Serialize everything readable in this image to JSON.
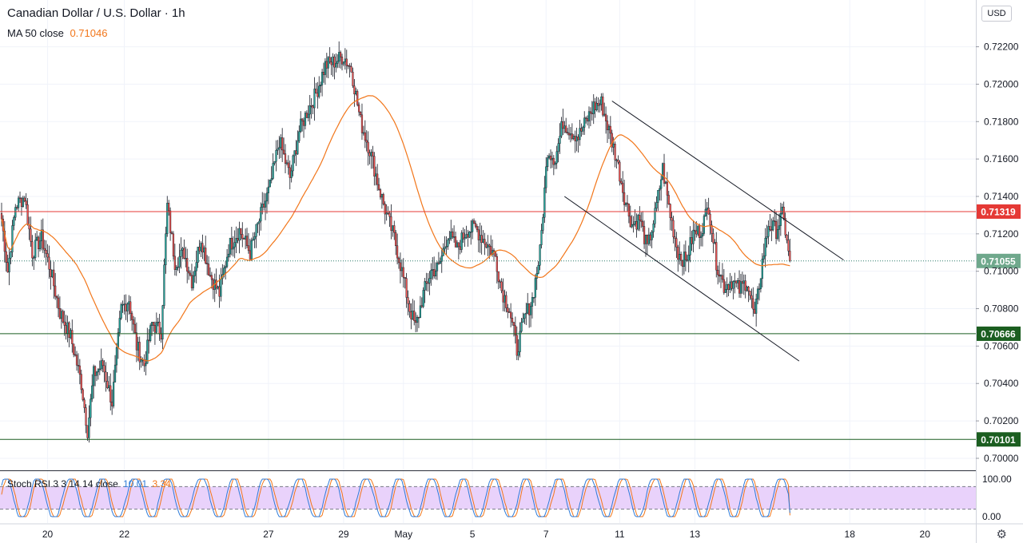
{
  "header": {
    "title": "Canadian Dollar / U.S. Dollar · 1h",
    "ma_label": "MA 50 close",
    "ma_value": "0.71046",
    "currency": "USD"
  },
  "rsi_legend": {
    "label": "Stoch RSI 3 3 14 14 close",
    "k_value": "10.01",
    "d_value": "3.34"
  },
  "colors": {
    "up": "#26a69a",
    "down": "#ef5350",
    "wick": "#131722",
    "ma": "#f2761a",
    "resistance": "#e53935",
    "support": "#1b5e20",
    "last": "#6fa88c",
    "stoch_k": "#2f7bd8",
    "stoch_d": "#f2761a",
    "stoch_band": "#e9d2fb"
  },
  "icons": {
    "settings": "gear-icon"
  },
  "chart_data": {
    "type": "candlestick",
    "symbol": "CADUSD",
    "interval": "1h",
    "y_axis_ticks": [
      "0.72200",
      "0.72000",
      "0.71800",
      "0.71600",
      "0.71400",
      "0.71200",
      "0.71000",
      "0.70800",
      "0.70600",
      "0.70400",
      "0.70200",
      "0.70000"
    ],
    "ylim": [
      0.6994,
      0.7245
    ],
    "x_axis_ticks": [
      "20",
      "22",
      "27",
      "29",
      "May",
      "5",
      "7",
      "11",
      "13",
      "18",
      "20"
    ],
    "x_tick_bars": [
      30,
      80,
      174,
      223,
      262,
      307,
      355,
      403,
      452,
      553,
      602
    ],
    "total_bars": 640,
    "anchors": [
      [
        0,
        0.7128
      ],
      [
        4,
        0.71
      ],
      [
        9,
        0.7135
      ],
      [
        15,
        0.714
      ],
      [
        20,
        0.711
      ],
      [
        26,
        0.7118
      ],
      [
        32,
        0.71
      ],
      [
        38,
        0.7078
      ],
      [
        45,
        0.7065
      ],
      [
        52,
        0.704
      ],
      [
        56,
        0.7015
      ],
      [
        60,
        0.7045
      ],
      [
        66,
        0.705
      ],
      [
        72,
        0.703
      ],
      [
        78,
        0.708
      ],
      [
        83,
        0.7085
      ],
      [
        88,
        0.706
      ],
      [
        93,
        0.705
      ],
      [
        98,
        0.7072
      ],
      [
        104,
        0.7068
      ],
      [
        108,
        0.7135
      ],
      [
        113,
        0.7105
      ],
      [
        119,
        0.711
      ],
      [
        124,
        0.7095
      ],
      [
        130,
        0.7118
      ],
      [
        136,
        0.7098
      ],
      [
        142,
        0.7088
      ],
      [
        148,
        0.7113
      ],
      [
        155,
        0.7122
      ],
      [
        162,
        0.711
      ],
      [
        169,
        0.713
      ],
      [
        175,
        0.7145
      ],
      [
        181,
        0.717
      ],
      [
        188,
        0.715
      ],
      [
        194,
        0.7175
      ],
      [
        199,
        0.7185
      ],
      [
        205,
        0.7195
      ],
      [
        211,
        0.721
      ],
      [
        217,
        0.7212
      ],
      [
        223,
        0.7215
      ],
      [
        228,
        0.7208
      ],
      [
        234,
        0.718
      ],
      [
        240,
        0.7165
      ],
      [
        246,
        0.7145
      ],
      [
        251,
        0.713
      ],
      [
        256,
        0.7118
      ],
      [
        261,
        0.71
      ],
      [
        266,
        0.708
      ],
      [
        270,
        0.707
      ],
      [
        275,
        0.7088
      ],
      [
        280,
        0.71
      ],
      [
        285,
        0.7102
      ],
      [
        291,
        0.712
      ],
      [
        297,
        0.7112
      ],
      [
        303,
        0.7122
      ],
      [
        309,
        0.7123
      ],
      [
        316,
        0.7115
      ],
      [
        322,
        0.7108
      ],
      [
        326,
        0.709
      ],
      [
        331,
        0.708
      ],
      [
        336,
        0.7058
      ],
      [
        341,
        0.7075
      ],
      [
        346,
        0.7085
      ],
      [
        351,
        0.711
      ],
      [
        356,
        0.7165
      ],
      [
        361,
        0.716
      ],
      [
        366,
        0.718
      ],
      [
        371,
        0.7175
      ],
      [
        376,
        0.7172
      ],
      [
        381,
        0.718
      ],
      [
        386,
        0.7188
      ],
      [
        391,
        0.719
      ],
      [
        396,
        0.7175
      ],
      [
        401,
        0.716
      ],
      [
        406,
        0.714
      ],
      [
        411,
        0.7125
      ],
      [
        416,
        0.7128
      ],
      [
        421,
        0.7112
      ],
      [
        426,
        0.713
      ],
      [
        431,
        0.7155
      ],
      [
        436,
        0.713
      ],
      [
        441,
        0.711
      ],
      [
        446,
        0.7105
      ],
      [
        451,
        0.712
      ],
      [
        456,
        0.7122
      ],
      [
        461,
        0.7135
      ],
      [
        466,
        0.7105
      ],
      [
        471,
        0.7092
      ],
      [
        476,
        0.7095
      ],
      [
        481,
        0.709
      ],
      [
        486,
        0.7095
      ],
      [
        491,
        0.7075
      ],
      [
        496,
        0.7105
      ],
      [
        500,
        0.7125
      ],
      [
        505,
        0.7122
      ],
      [
        509,
        0.713
      ],
      [
        512,
        0.7118
      ],
      [
        514,
        0.71
      ]
    ],
    "last_price": 0.71055,
    "horizontal_lines": [
      {
        "price": 0.71319,
        "label": "0.71319",
        "color": "#e53935"
      },
      {
        "price": 0.70666,
        "label": "0.70666",
        "color": "#1b5e20"
      },
      {
        "price": 0.70101,
        "label": "0.70101",
        "color": "#1b5e20"
      }
    ],
    "trend_lines": [
      [
        [
          398,
          0.7191
        ],
        [
          549,
          0.7106
        ]
      ],
      [
        [
          367,
          0.714
        ],
        [
          520,
          0.7052
        ]
      ]
    ],
    "ma_period": 50,
    "stoch_rsi": {
      "ylim": [
        0,
        100
      ],
      "ticks": [
        "100.00",
        "0.00"
      ],
      "band": [
        20,
        80
      ],
      "k_last": 10.01,
      "d_last": 3.34
    }
  }
}
